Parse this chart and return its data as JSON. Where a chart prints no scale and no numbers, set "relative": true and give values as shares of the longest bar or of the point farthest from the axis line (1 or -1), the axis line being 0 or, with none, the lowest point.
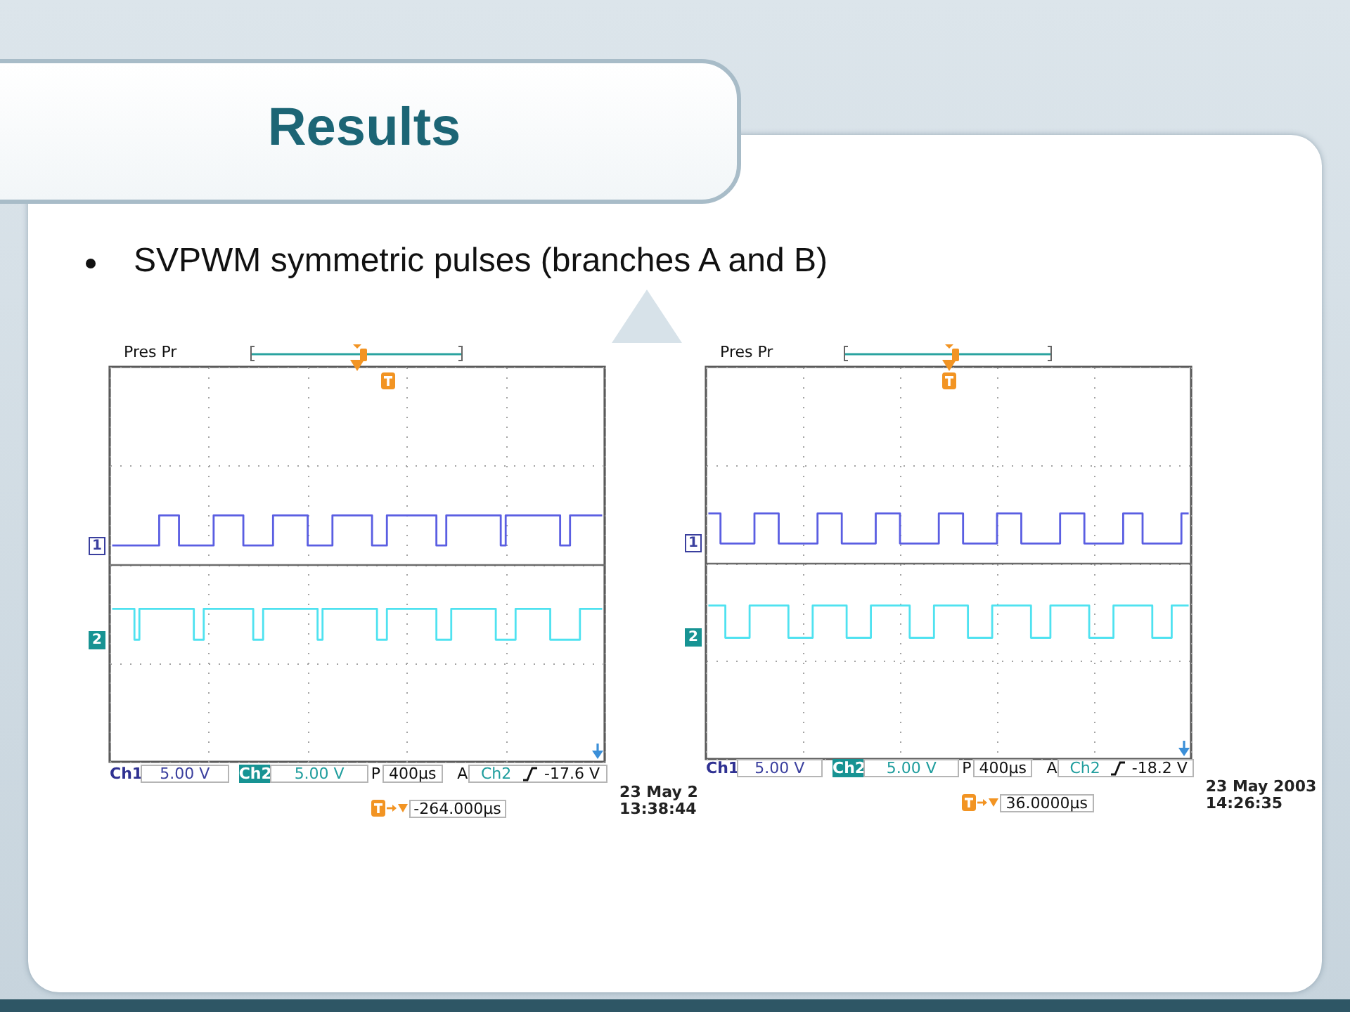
{
  "chart_data": [
    {
      "type": "step",
      "title": "Results",
      "subtitle": "SVPWM symmetric pulses (branches A and B)",
      "relative": true,
      "grid": true,
      "tick_labels": false,
      "categories": [
        null,
        null,
        null,
        null,
        null,
        null,
        null,
        null,
        null,
        null,
        null,
        null,
        null,
        null,
        null,
        null,
        null,
        null,
        null,
        null,
        null,
        null,
        null,
        null,
        null,
        null,
        null,
        null,
        null,
        null,
        null,
        null,
        null,
        null,
        null,
        null,
        null,
        null,
        null,
        null,
        null,
        null,
        null,
        null,
        null,
        null,
        null,
        null,
        null,
        null,
        null,
        null,
        null,
        null,
        null,
        null,
        null,
        null,
        null,
        null,
        null,
        null,
        null,
        null,
        null,
        null,
        null,
        null,
        null,
        null,
        null,
        null,
        null,
        null,
        null,
        null,
        null,
        null,
        null,
        null,
        null,
        null,
        null,
        null,
        null,
        null,
        null,
        null,
        null,
        null,
        null,
        null,
        null,
        null,
        null,
        null,
        null,
        null,
        null,
        null
      ],
      "series": [
        {
          "name": "1",
          "color": "#5a5ee2",
          "values": [
            0.25,
            0.25,
            0.25,
            0.25,
            0.25,
            0.25,
            0.25,
            0.25,
            0.25,
            0.25,
            0.65,
            0.65,
            0.65,
            0.65,
            0.25,
            0.25,
            0.25,
            0.25,
            0.25,
            0.25,
            0.25,
            0.65,
            0.65,
            0.65,
            0.65,
            0.65,
            0.65,
            0.25,
            0.25,
            0.25,
            0.25,
            0.25,
            0.25,
            0.65,
            0.65,
            0.65,
            0.65,
            0.65,
            0.65,
            0.65,
            0.25,
            0.25,
            0.25,
            0.25,
            0.25,
            0.65,
            0.65,
            0.65,
            0.65,
            0.65,
            0.65,
            0.65,
            0.65,
            0.25,
            0.25,
            0.25,
            0.65,
            0.65,
            0.65,
            0.65,
            0.65,
            0.65,
            0.65,
            0.65,
            0.65,
            0.65,
            0.25,
            0.25,
            0.65,
            0.65,
            0.65,
            0.65,
            0.65,
            0.65,
            0.65,
            0.65,
            0.65,
            0.65,
            0.65,
            0.25,
            0.65,
            0.65,
            0.65,
            0.65,
            0.65,
            0.65,
            0.65,
            0.65,
            0.65,
            0.65,
            0.65,
            0.25,
            0.25,
            0.65,
            0.65,
            0.65,
            0.65,
            0.65,
            0.65,
            0.65
          ]
        },
        {
          "name": "2",
          "color": "#4fe2f0",
          "values": [
            -0.59,
            -0.59,
            -0.59,
            -0.59,
            -0.59,
            -1,
            -0.59,
            -0.59,
            -0.59,
            -0.59,
            -0.59,
            -0.59,
            -0.59,
            -0.59,
            -0.59,
            -0.59,
            -0.59,
            -1,
            -1,
            -0.59,
            -0.59,
            -0.59,
            -0.59,
            -0.59,
            -0.59,
            -0.59,
            -0.59,
            -0.59,
            -0.59,
            -1,
            -1,
            -0.59,
            -0.59,
            -0.59,
            -0.59,
            -0.59,
            -0.59,
            -0.59,
            -0.59,
            -0.59,
            -0.59,
            -0.59,
            -1,
            -0.59,
            -0.59,
            -0.59,
            -0.59,
            -0.59,
            -0.59,
            -0.59,
            -0.59,
            -0.59,
            -0.59,
            -0.59,
            -1,
            -1,
            -0.59,
            -0.59,
            -0.59,
            -0.59,
            -0.59,
            -0.59,
            -0.59,
            -0.59,
            -0.59,
            -0.59,
            -1,
            -1,
            -1,
            -0.59,
            -0.59,
            -0.59,
            -0.59,
            -0.59,
            -0.59,
            -0.59,
            -0.59,
            -0.59,
            -1,
            -1,
            -1,
            -1,
            -0.59,
            -0.59,
            -0.59,
            -0.59,
            -0.59,
            -0.59,
            -0.59,
            -1,
            -1,
            -1,
            -1,
            -1,
            -1,
            -0.59,
            -0.59,
            -0.59,
            -0.59,
            -0.59
          ]
        }
      ],
      "annotations": [
        "Pres Pr",
        "Ch1",
        "5.00 V",
        "Ch2",
        "5.00 V",
        "P",
        "400µs",
        "A",
        "Ch2",
        "-17.6 V",
        "-264.000µs",
        "23 May 2",
        "13:38:44"
      ]
    },
    {
      "type": "step",
      "relative": true,
      "grid": true,
      "tick_labels": false,
      "categories": [
        null,
        null,
        null,
        null,
        null,
        null,
        null,
        null,
        null,
        null,
        null,
        null,
        null,
        null,
        null,
        null,
        null,
        null,
        null,
        null,
        null,
        null,
        null,
        null,
        null,
        null,
        null,
        null,
        null,
        null,
        null,
        null,
        null,
        null,
        null,
        null,
        null,
        null,
        null,
        null,
        null,
        null,
        null,
        null,
        null,
        null,
        null,
        null,
        null,
        null,
        null,
        null,
        null,
        null,
        null,
        null,
        null,
        null,
        null,
        null,
        null,
        null,
        null,
        null,
        null,
        null,
        null,
        null,
        null,
        null,
        null,
        null,
        null,
        null,
        null,
        null,
        null,
        null,
        null,
        null,
        null,
        null,
        null,
        null,
        null,
        null,
        null,
        null,
        null,
        null,
        null,
        null,
        null,
        null,
        null,
        null,
        null,
        null,
        null,
        null
      ],
      "series": [
        {
          "name": "1",
          "color": "#5a5ee2",
          "values": [
            0.66,
            0.66,
            0.66,
            0.26,
            0.26,
            0.26,
            0.26,
            0.26,
            0.26,
            0.26,
            0.66,
            0.66,
            0.66,
            0.66,
            0.66,
            0.26,
            0.26,
            0.26,
            0.26,
            0.26,
            0.26,
            0.26,
            0.26,
            0.66,
            0.66,
            0.66,
            0.66,
            0.66,
            0.26,
            0.26,
            0.26,
            0.26,
            0.26,
            0.26,
            0.26,
            0.66,
            0.66,
            0.66,
            0.66,
            0.66,
            0.26,
            0.26,
            0.26,
            0.26,
            0.26,
            0.26,
            0.26,
            0.26,
            0.66,
            0.66,
            0.66,
            0.66,
            0.66,
            0.26,
            0.26,
            0.26,
            0.26,
            0.26,
            0.26,
            0.26,
            0.66,
            0.66,
            0.66,
            0.66,
            0.66,
            0.26,
            0.26,
            0.26,
            0.26,
            0.26,
            0.26,
            0.26,
            0.26,
            0.66,
            0.66,
            0.66,
            0.66,
            0.66,
            0.26,
            0.26,
            0.26,
            0.26,
            0.26,
            0.26,
            0.26,
            0.26,
            0.66,
            0.66,
            0.66,
            0.66,
            0.26,
            0.26,
            0.26,
            0.26,
            0.26,
            0.26,
            0.26,
            0.26,
            0.66,
            0.66
          ]
        },
        {
          "name": "2",
          "color": "#4fe2f0",
          "values": [
            -0.57,
            -0.57,
            -0.57,
            -0.57,
            -1,
            -1,
            -1,
            -1,
            -1,
            -0.57,
            -0.57,
            -0.57,
            -0.57,
            -0.57,
            -0.57,
            -0.57,
            -0.57,
            -1,
            -1,
            -1,
            -1,
            -1,
            -0.57,
            -0.57,
            -0.57,
            -0.57,
            -0.57,
            -0.57,
            -0.57,
            -1,
            -1,
            -1,
            -1,
            -1,
            -0.57,
            -0.57,
            -0.57,
            -0.57,
            -0.57,
            -0.57,
            -0.57,
            -0.57,
            -1,
            -1,
            -1,
            -1,
            -1,
            -0.57,
            -0.57,
            -0.57,
            -0.57,
            -0.57,
            -0.57,
            -0.57,
            -1,
            -1,
            -1,
            -1,
            -1,
            -0.57,
            -0.57,
            -0.57,
            -0.57,
            -0.57,
            -0.57,
            -0.57,
            -0.57,
            -1,
            -1,
            -1,
            -1,
            -0.57,
            -0.57,
            -0.57,
            -0.57,
            -0.57,
            -0.57,
            -0.57,
            -0.57,
            -1,
            -1,
            -1,
            -1,
            -1,
            -0.57,
            -0.57,
            -0.57,
            -0.57,
            -0.57,
            -0.57,
            -0.57,
            -0.57,
            -1,
            -1,
            -1,
            -1,
            -0.57,
            -0.57,
            -0.57,
            -0.57
          ]
        }
      ],
      "annotations": [
        "Pres Pr",
        "Ch1",
        "5.00 V",
        "Ch2",
        "5.00 V",
        "P",
        "400µs",
        "A",
        "Ch2",
        "-18.2 V",
        "36.0000µs",
        "23 May 2003",
        "14:26:35"
      ]
    }
  ]
}
